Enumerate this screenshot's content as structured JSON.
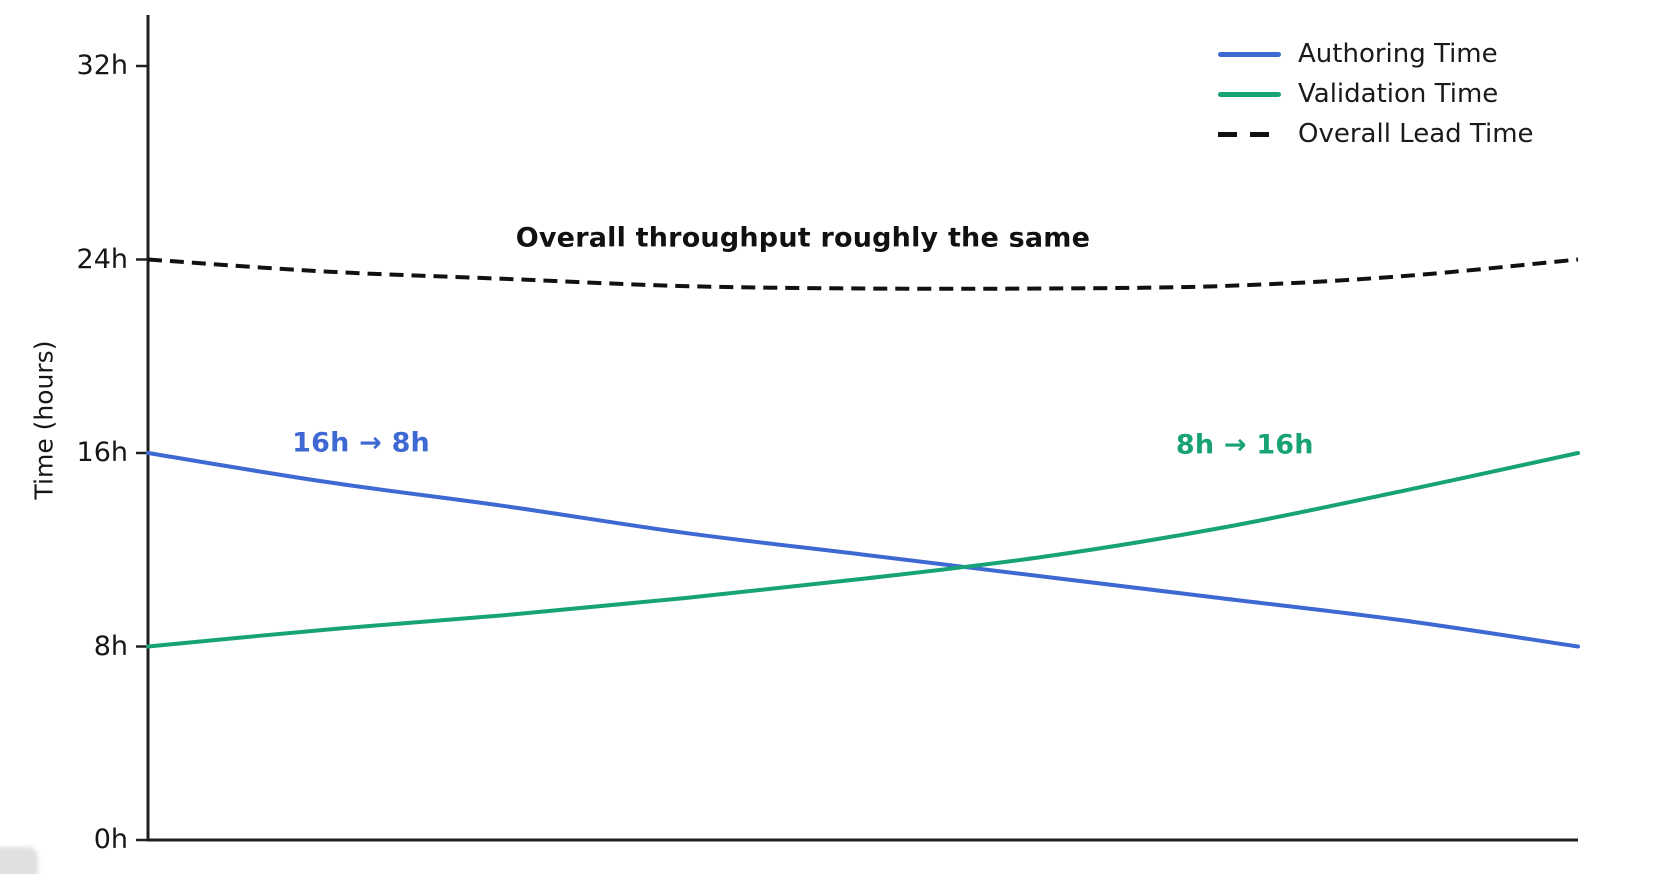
{
  "style": {
    "background": "#ffffff",
    "axis_color": "#1f1f1f",
    "tick_text_color": "#161616",
    "legend_text_color": "#1a1a1a"
  },
  "chart_data": {
    "type": "line",
    "title": "",
    "xlabel": "",
    "ylabel": "Time (hours)",
    "x_axis_tick_labels": "none",
    "x": [
      0,
      0.125,
      0.25,
      0.375,
      0.5,
      0.625,
      0.75,
      0.875,
      1
    ],
    "series": [
      {
        "name": "Authoring Time",
        "color": "#3e69d2",
        "line_style": "solid",
        "start_value_hours": 16,
        "end_value_hours": 8,
        "values": [
          16,
          14.8,
          13.8,
          12.7,
          11.8,
          10.9,
          10,
          9.1,
          8
        ]
      },
      {
        "name": "Validation Time",
        "color": "#17a375",
        "line_style": "solid",
        "start_value_hours": 8,
        "end_value_hours": 16,
        "values": [
          8,
          8.7,
          9.3,
          10,
          10.8,
          11.7,
          12.9,
          14.4,
          16
        ]
      },
      {
        "name": "Overall Lead Time",
        "color": "#111111",
        "line_style": "dashed",
        "start_value_hours": 24,
        "end_value_hours": 24,
        "values": [
          24,
          23.5,
          23.2,
          22.9,
          22.8,
          22.8,
          22.9,
          23.3,
          24
        ]
      }
    ],
    "ylim": [
      0,
      34
    ],
    "yticks": {
      "values": [
        0,
        8,
        16,
        24,
        32
      ],
      "labels": [
        "0h",
        "8h",
        "16h",
        "24h",
        "32h"
      ]
    },
    "grid": false,
    "legend_position": "upper right",
    "annotations": [
      {
        "text": "Overall throughput roughly the same",
        "color": "#111111",
        "x": 0.458,
        "y": 24.9
      },
      {
        "text": "16h → 8h",
        "color": "#3e69d2",
        "x": 0.149,
        "y": 16.4
      },
      {
        "text": "8h → 16h",
        "color": "#17a375",
        "x": 0.767,
        "y": 16.35
      }
    ]
  }
}
